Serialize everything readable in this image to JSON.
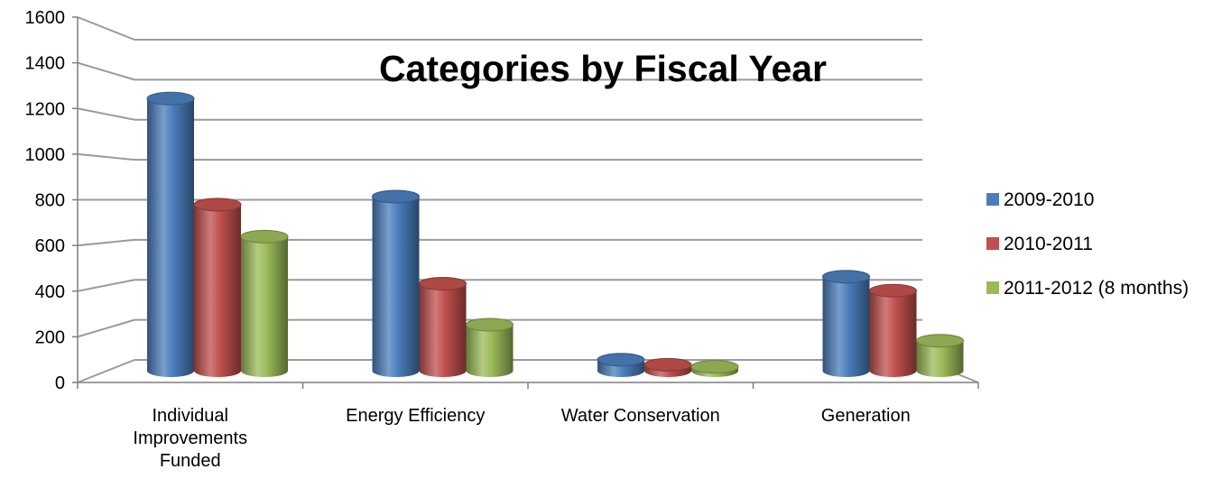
{
  "chart_data": {
    "type": "bar",
    "style": "3d-cylinder",
    "title": "Categories by Fiscal Year",
    "xlabel": "",
    "ylabel": "",
    "categories": [
      [
        "Individual",
        "Improvements",
        "Funded"
      ],
      [
        "Energy Efficiency"
      ],
      [
        "Water Conservation"
      ],
      [
        "Generation"
      ]
    ],
    "series": [
      {
        "name": "2009-2010",
        "color": "#4a7ebb",
        "values": [
          1360,
          870,
          55,
          470
        ]
      },
      {
        "name": "2010-2011",
        "color": "#c0504d",
        "values": [
          830,
          435,
          30,
          400
        ]
      },
      {
        "name": "2011-2012 (8 months)",
        "color": "#9bbb59",
        "values": [
          670,
          230,
          20,
          150
        ]
      }
    ],
    "ylim": [
      0,
      1600
    ],
    "yticks": [
      "0",
      "200",
      "400",
      "600",
      "800",
      "1000",
      "1200",
      "1400",
      "1600"
    ],
    "grid": true,
    "legend": "right"
  }
}
